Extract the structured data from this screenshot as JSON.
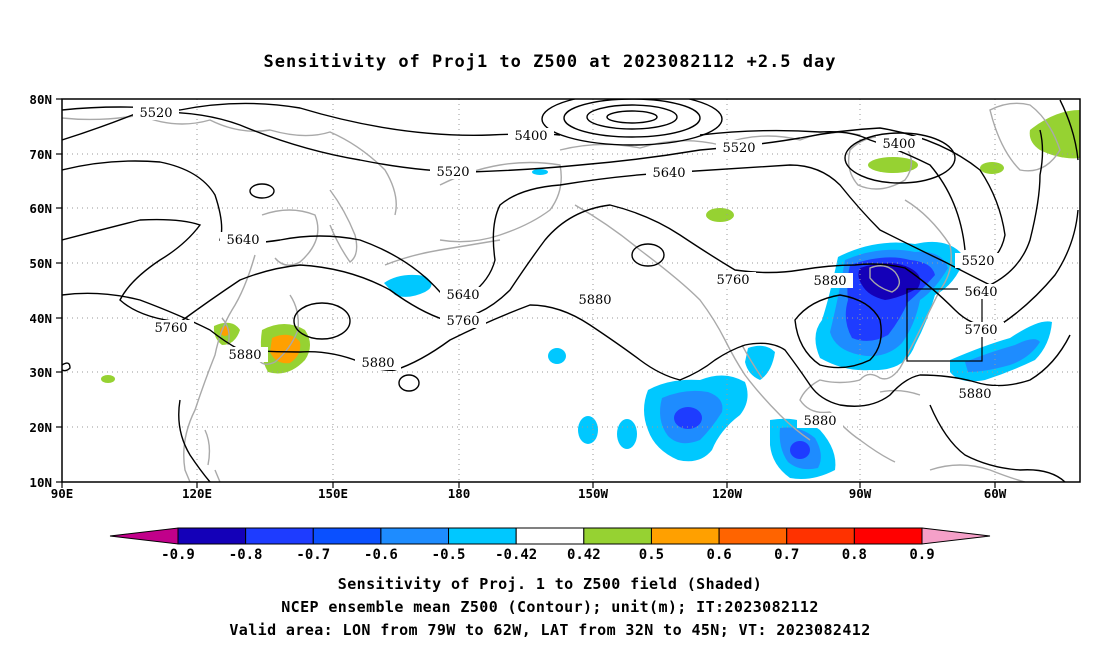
{
  "title": "Sensitivity of Proj1 to Z500 at 2023082112 +2.5 day",
  "map": {
    "lat_labels": [
      "80N",
      "70N",
      "60N",
      "50N",
      "40N",
      "30N",
      "20N",
      "10N"
    ],
    "lon_labels": [
      "90E",
      "120E",
      "150E",
      "180",
      "150W",
      "120W",
      "90W",
      "60W"
    ],
    "extent": {
      "lon_west": "90E",
      "lon_east": "30W",
      "lat_south": "10N",
      "lat_north": "80N"
    },
    "contour_labels": [
      "5520",
      "5400",
      "5520",
      "5400",
      "5520",
      "5640",
      "5640",
      "5520",
      "5760",
      "5880",
      "5640",
      "5760",
      "5640",
      "5760",
      "5880",
      "5880",
      "5760",
      "5880",
      "5880"
    ],
    "colors": {
      "contour": "#000000",
      "coastline": "#a9a9a9",
      "grid": "#9a9a9a"
    }
  },
  "colorbar": {
    "labels": [
      "-0.9",
      "-0.8",
      "-0.7",
      "-0.6",
      "-0.5",
      "-0.42",
      "0.42",
      "0.5",
      "0.6",
      "0.7",
      "0.8",
      "0.9"
    ],
    "colors": [
      "#c1008a",
      "#1400b8",
      "#1e3cff",
      "#0a50ff",
      "#1e8cff",
      "#00c8ff",
      "#ffffff",
      "#96d232",
      "#ffa000",
      "#ff6400",
      "#ff3200",
      "#ff0000",
      "#f5a0c8"
    ]
  },
  "footer": {
    "line1": "Sensitivity of Proj. 1 to Z500 field (Shaded)",
    "line2": "NCEP ensemble mean Z500 (Contour); unit(m); IT:2023082112",
    "line3": "Valid area: LON from 79W to 62W, LAT from 32N to 45N; VT: 2023082412"
  }
}
